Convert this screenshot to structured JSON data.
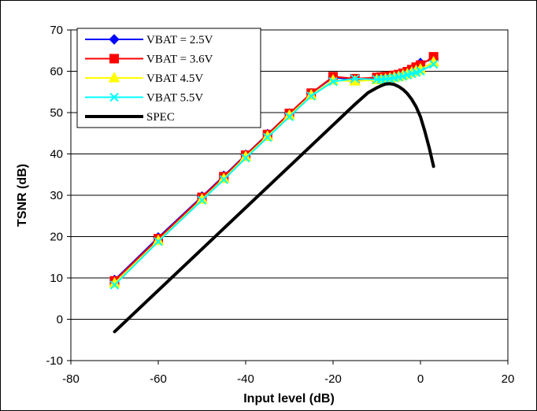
{
  "chart_data": {
    "type": "line",
    "title": "",
    "xlabel": "Input level (dB)",
    "ylabel": "TSNR (dB)",
    "xlim": [
      -80,
      20
    ],
    "ylim": [
      -10,
      70
    ],
    "xticks": [
      -80,
      -60,
      -40,
      -20,
      0,
      20
    ],
    "yticks": [
      -10,
      0,
      10,
      20,
      30,
      40,
      50,
      60,
      70
    ],
    "xtick_labels": [
      "-80",
      "-60",
      "-40",
      "-20",
      "0",
      "20"
    ],
    "ytick_labels": [
      "-10",
      "0",
      "10",
      "20",
      "30",
      "40",
      "50",
      "60",
      "70"
    ],
    "grid": "horizontal",
    "legend_position": "top-left",
    "series": [
      {
        "name": "VBAT = 2.5V",
        "color": "#0000ff",
        "marker": "diamond",
        "x": [
          -70,
          -60,
          -50,
          -45,
          -40,
          -35,
          -30,
          -25,
          -20,
          -15,
          -10,
          -9,
          -8,
          -7,
          -6,
          -5,
          -4,
          -3,
          -2,
          -1,
          0,
          3
        ],
        "y": [
          9.5,
          19.8,
          29.7,
          34.7,
          39.8,
          44.8,
          49.8,
          54.7,
          58.5,
          58.0,
          58.3,
          58.4,
          58.5,
          58.6,
          58.8,
          59.0,
          59.3,
          59.7,
          60.3,
          61.0,
          62.0,
          63.0
        ]
      },
      {
        "name": "VBAT = 3.6V",
        "color": "#ff0000",
        "marker": "square",
        "x": [
          -70,
          -60,
          -50,
          -45,
          -40,
          -35,
          -30,
          -25,
          -20,
          -15,
          -10,
          -9,
          -8,
          -7,
          -6,
          -5,
          -4,
          -3,
          -2,
          -1,
          0,
          3
        ],
        "y": [
          9.3,
          19.5,
          29.5,
          34.5,
          39.7,
          44.7,
          49.8,
          54.7,
          58.7,
          58.2,
          58.5,
          58.6,
          58.7,
          58.8,
          59.0,
          59.2,
          59.5,
          59.9,
          60.4,
          61.0,
          61.5,
          63.5
        ]
      },
      {
        "name": "VBAT 4.5V",
        "color": "#ffff00",
        "marker": "triangle",
        "x": [
          -70,
          -60,
          -50,
          -45,
          -40,
          -35,
          -30,
          -25,
          -20,
          -15,
          -10,
          -9,
          -8,
          -7,
          -6,
          -5,
          -4,
          -3,
          -2,
          -1,
          0,
          3
        ],
        "y": [
          8.7,
          19.0,
          29.0,
          34.0,
          39.3,
          44.2,
          49.3,
          54.2,
          57.8,
          57.6,
          57.9,
          58.0,
          58.1,
          58.3,
          58.5,
          58.7,
          59.0,
          59.3,
          59.7,
          60.1,
          60.5,
          62.2
        ]
      },
      {
        "name": "VBAT 5.5V",
        "color": "#00ffff",
        "marker": "x",
        "x": [
          -70,
          -60,
          -50,
          -45,
          -40,
          -35,
          -30,
          -25,
          -20,
          -15,
          -10,
          -9,
          -8,
          -7,
          -6,
          -5,
          -4,
          -3,
          -2,
          -1,
          0,
          3
        ],
        "y": [
          8.3,
          18.8,
          28.8,
          33.8,
          39.0,
          44.0,
          49.0,
          54.0,
          57.5,
          58.2,
          58.0,
          58.0,
          58.1,
          58.2,
          58.4,
          58.6,
          58.8,
          59.1,
          59.4,
          59.7,
          60.0,
          61.7
        ]
      },
      {
        "name": "SPEC",
        "color": "#000000",
        "marker": "none",
        "x": [
          -70,
          -60,
          -50,
          -40,
          -30,
          -20,
          -15,
          -12,
          -10,
          -9,
          -8,
          -7,
          -6,
          -5,
          -4,
          -3,
          -2,
          -1,
          0,
          1,
          2,
          3
        ],
        "y": [
          -3.0,
          7.0,
          17.0,
          27.0,
          37.0,
          47.0,
          52.0,
          54.8,
          56.0,
          56.5,
          56.9,
          57.0,
          56.8,
          56.3,
          55.6,
          54.6,
          53.2,
          51.4,
          49.0,
          45.5,
          41.5,
          37.0
        ]
      }
    ]
  }
}
